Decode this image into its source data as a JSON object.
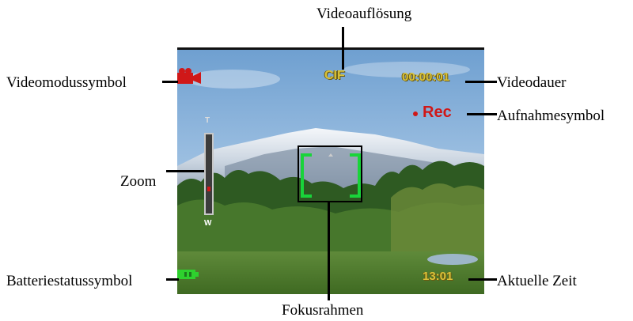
{
  "labels": {
    "video_resolution": "Videoauflösung",
    "video_mode_icon": "Videomodussymbol",
    "video_duration": "Videodauer",
    "record_icon": "Aufnahmesymbol",
    "zoom": "Zoom",
    "battery_status_icon": "Batteriestatussymbol",
    "current_time": "Aktuelle Zeit",
    "focus_frame": "Fokusrahmen"
  },
  "osd": {
    "resolution_value": "CIF",
    "duration_value": "00:00:01",
    "rec_text": "Rec",
    "time_value": "13:01",
    "zoom_top_label": "T",
    "zoom_bottom_label": "W",
    "zoom_level": 0.3
  },
  "colors": {
    "osd_yellow": "#d9c23a",
    "rec_red": "#d01818",
    "focus_green": "#19d43a",
    "battery_green": "#2ed12e"
  },
  "icons": {
    "mode": "video-camera-icon",
    "record": "record-dot-icon",
    "battery": "battery-icon"
  }
}
